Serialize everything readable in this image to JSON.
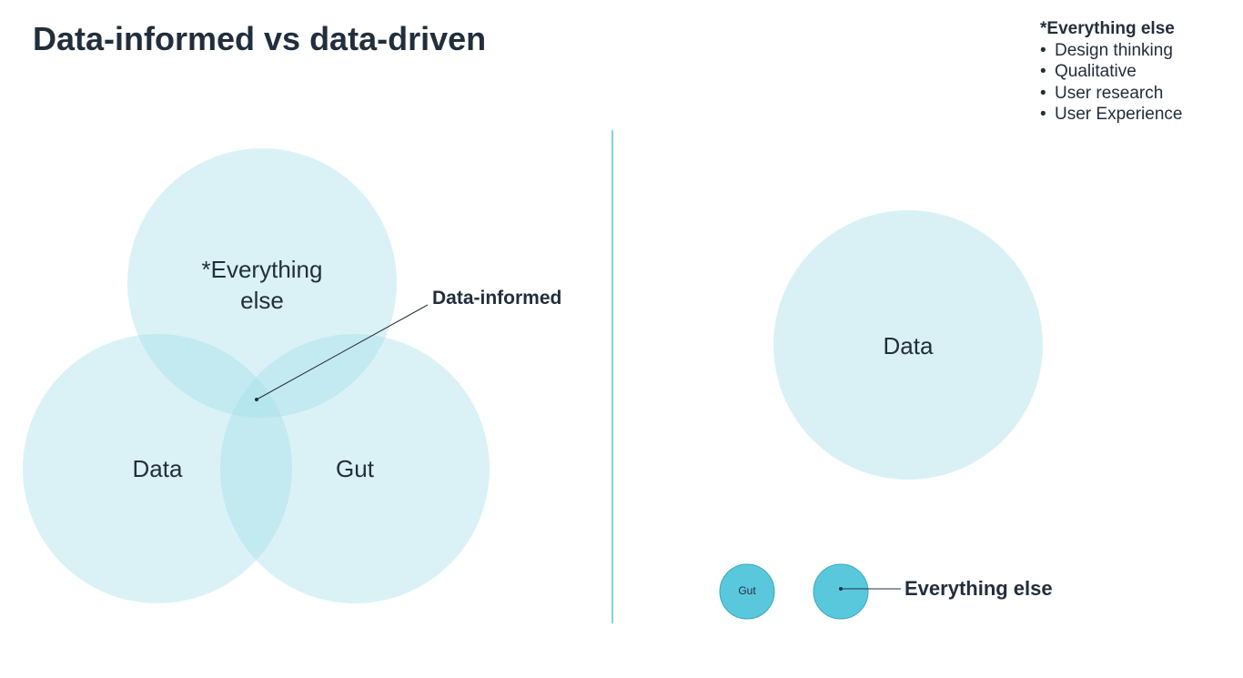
{
  "title": "Data-informed vs data-driven",
  "note": {
    "heading": "*Everything else",
    "items": [
      "Design thinking",
      "Qualitative",
      "User research",
      "User Experience"
    ]
  },
  "data_informed": {
    "circles": [
      "*Everything else",
      "Data",
      "Gut"
    ],
    "callout": "Data-informed"
  },
  "data_driven": {
    "circles": [
      "Data",
      "Gut"
    ],
    "callout": "Everything else"
  }
}
